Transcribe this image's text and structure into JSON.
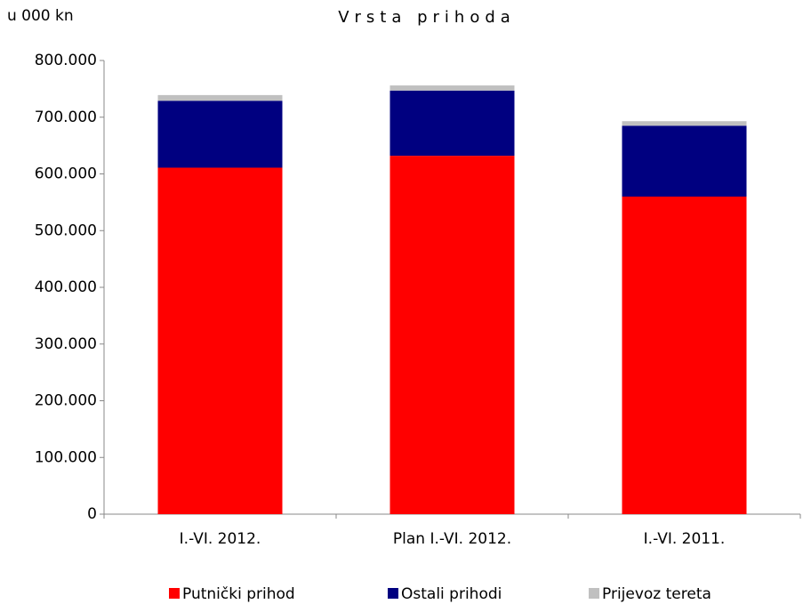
{
  "chart_data": {
    "type": "stacked_bar",
    "title": "Vrsta prihoda",
    "y_unit_label": "u 000 kn",
    "categories": [
      "I.-VI. 2012.",
      "Plan I.-VI. 2012.",
      "I.-VI. 2011."
    ],
    "series": [
      {
        "name": "Putnički prihod",
        "color": "#ff0000",
        "values": [
          611000,
          632000,
          560000
        ]
      },
      {
        "name": "Ostali prihodi",
        "color": "#000080",
        "values": [
          118000,
          115000,
          125000
        ]
      },
      {
        "name": "Prijevoz tereta",
        "color": "#c0c0c0",
        "values": [
          10000,
          9000,
          8000
        ]
      }
    ],
    "ylim": [
      0,
      800000
    ],
    "yticks": [
      0,
      {
        "value": 100000,
        "label": "100.000"
      },
      {
        "value": 200000,
        "label": "200.000"
      },
      {
        "value": 300000,
        "label": "300.000"
      },
      {
        "value": 400000,
        "label": "400.000"
      },
      {
        "value": 500000,
        "label": "500.000"
      },
      {
        "value": 600000,
        "label": "600.000"
      },
      {
        "value": 700000,
        "label": "700.000"
      },
      {
        "value": 800000,
        "label": "800.000"
      }
    ],
    "legend": "bottom"
  }
}
